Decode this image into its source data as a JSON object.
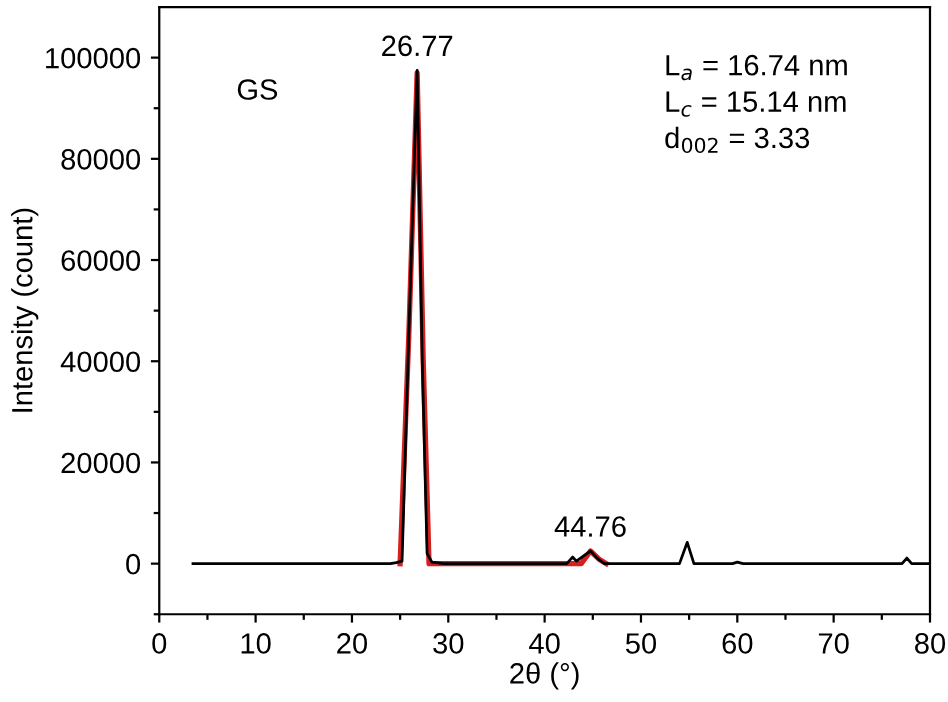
{
  "chart_data": {
    "type": "line",
    "xlabel": "2θ (°)",
    "ylabel": "Intensity (count)",
    "series": [
      {
        "color": "#000000",
        "x": [
          3.5,
          24.0,
          24.6,
          25.2,
          25.9,
          26.77,
          27.3,
          27.8,
          28.3,
          29.5,
          42.3,
          42.9,
          43.3,
          43.8,
          44.76,
          45.5,
          46.2,
          54.0,
          54.8,
          55.5,
          59.5,
          60.0,
          60.6,
          77.1,
          77.6,
          78.1,
          80.0
        ],
        "values": [
          0,
          0,
          200,
          500,
          45000,
          97500,
          40000,
          2000,
          300,
          0,
          0,
          1300,
          500,
          1200,
          2500,
          1000,
          0,
          0,
          4200,
          0,
          0,
          300,
          0,
          0,
          1100,
          0,
          0
        ]
      },
      {
        "color": "#d62020",
        "x": [
          25.0,
          25.9,
          26.77,
          27.4,
          28.0,
          43.8,
          44.76,
          45.7,
          46.4
        ],
        "values": [
          0,
          45000,
          97000,
          40000,
          0,
          0,
          2500,
          800,
          0
        ]
      }
    ],
    "xlim": [
      0,
      80
    ],
    "ylim": [
      -10000,
      110000
    ],
    "xticks": [
      0,
      {
        "value": 5,
        "label": null
      },
      10,
      {
        "value": 15,
        "label": null
      },
      20,
      {
        "value": 25,
        "label": null
      },
      30,
      {
        "value": 35,
        "label": null
      },
      40,
      {
        "value": 45,
        "label": null
      },
      50,
      {
        "value": 55,
        "label": null
      },
      60,
      {
        "value": 65,
        "label": null
      },
      70,
      {
        "value": 75,
        "label": null
      },
      80
    ],
    "yticks": [
      {
        "value": -10000,
        "label": null
      },
      0,
      {
        "value": 10000,
        "label": null
      },
      20000,
      {
        "value": 30000,
        "label": null
      },
      40000,
      {
        "value": 50000,
        "label": null
      },
      60000,
      {
        "value": 70000,
        "label": null
      },
      80000,
      {
        "value": 90000,
        "label": null
      },
      100000
    ],
    "grid": false,
    "legend": false,
    "marker": "none",
    "line_style": "solid",
    "annotations": [
      {
        "text": "26.77",
        "x": 26.77,
        "y": 97500
      },
      {
        "text": "44.76",
        "x": 44.76,
        "y": 2500
      },
      "GS",
      "L$_{a}$ = 16.74 nm",
      "L$_{c}$ = 15.14 nm",
      "d$_{002}$ = 3.33"
    ]
  }
}
